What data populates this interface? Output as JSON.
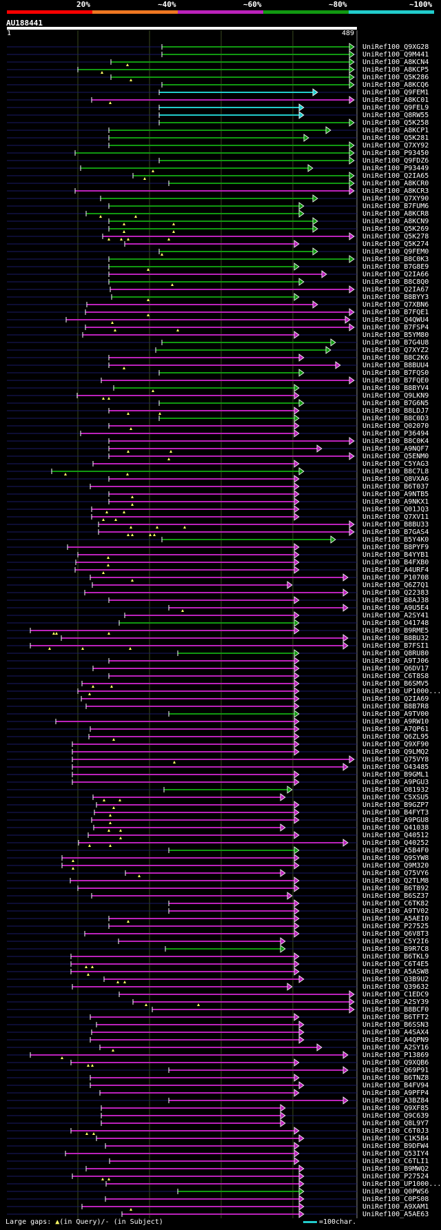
{
  "query": {
    "name": "AU188441",
    "start": "1",
    "end": "489"
  },
  "legend": {
    "percent_labels": [
      "20%",
      "~40%",
      "~60%",
      "~80%",
      "~100%"
    ],
    "colors": [
      "#ff0000",
      "#ee7722",
      "#bb22bb",
      "#119911",
      "#22cccc"
    ]
  },
  "footer": {
    "gaps_label": "Large gaps:",
    "gaps_query": "(in Query)/",
    "gaps_subject": "- (in Subject)",
    "scale_label": "=100char."
  },
  "hits": [
    {
      "id": "UniRef100_Q9XG28",
      "s": 235,
      "e": 514,
      "c": "g",
      "a": []
    },
    {
      "id": "UniRef100_Q9M441",
      "s": 235,
      "e": 514,
      "c": "g",
      "a": []
    },
    {
      "id": "UniRef100_A8KCN4",
      "s": 161,
      "e": 514,
      "c": "g",
      "a": [
        185
      ]
    },
    {
      "id": "UniRef100_A8KCP5",
      "s": 113,
      "e": 514,
      "c": "g",
      "a": [
        148
      ]
    },
    {
      "id": "UniRef100_Q5K286",
      "s": 161,
      "e": 514,
      "c": "g",
      "a": [
        190
      ]
    },
    {
      "id": "UniRef100_A8KCQ6",
      "s": 235,
      "e": 514,
      "c": "g",
      "a": []
    },
    {
      "id": "UniRef100_Q9FEM1",
      "s": 231,
      "e": 461,
      "c": "c",
      "a": []
    },
    {
      "id": "UniRef100_A8KC01",
      "s": 133,
      "e": 514,
      "c": "m",
      "a": [
        160
      ]
    },
    {
      "id": "UniRef100_Q9FEL9",
      "s": 231,
      "e": 441,
      "c": "c",
      "a": []
    },
    {
      "id": "UniRef100_Q8RW55",
      "s": 231,
      "e": 441,
      "c": "c",
      "a": []
    },
    {
      "id": "UniRef100_Q5K258",
      "s": 231,
      "e": 514,
      "c": "g",
      "a": []
    },
    {
      "id": "UniRef100_A8KCP1",
      "s": 158,
      "e": 480,
      "c": "g",
      "a": []
    },
    {
      "id": "UniRef100_Q5K281",
      "s": 158,
      "e": 448,
      "c": "g",
      "a": []
    },
    {
      "id": "UniRef100_Q7XY92",
      "s": 158,
      "e": 514,
      "c": "g",
      "a": []
    },
    {
      "id": "UniRef100_P93450",
      "s": 109,
      "e": 514,
      "c": "g",
      "a": []
    },
    {
      "id": "UniRef100_Q9FDZ6",
      "s": 231,
      "e": 514,
      "c": "g",
      "a": []
    },
    {
      "id": "UniRef100_P93449",
      "s": 117,
      "e": 454,
      "c": "g",
      "a": [
        222
      ]
    },
    {
      "id": "UniRef100_Q2IA65",
      "s": 193,
      "e": 514,
      "c": "g",
      "a": [
        210
      ]
    },
    {
      "id": "UniRef100_A8KCR0",
      "s": 245,
      "e": 514,
      "c": "g",
      "a": []
    },
    {
      "id": "UniRef100_A8KCR3",
      "s": 109,
      "e": 514,
      "c": "m",
      "a": []
    },
    {
      "id": "UniRef100_Q7XY90",
      "s": 146,
      "e": 461,
      "c": "g",
      "a": []
    },
    {
      "id": "UniRef100_B7FUM6",
      "s": 158,
      "e": 441,
      "c": "g",
      "a": []
    },
    {
      "id": "UniRef100_A8KCR8",
      "s": 125,
      "e": 441,
      "c": "g",
      "a": [
        146,
        197
      ]
    },
    {
      "id": "UniRef100_A8KCN9",
      "s": 158,
      "e": 461,
      "c": "g",
      "a": [
        180,
        252
      ]
    },
    {
      "id": "UniRef100_Q5K269",
      "s": 158,
      "e": 461,
      "c": "g",
      "a": [
        180,
        252
      ]
    },
    {
      "id": "UniRef100_Q5K278",
      "s": 149,
      "e": 514,
      "c": "m",
      "a": [
        158,
        176,
        186,
        245
      ]
    },
    {
      "id": "UniRef100_Q5K274",
      "s": 181,
      "e": 434,
      "c": "m",
      "a": []
    },
    {
      "id": "UniRef100_Q9FEM0",
      "s": 231,
      "e": 461,
      "c": "g",
      "a": [
        235
      ]
    },
    {
      "id": "UniRef100_B8C0K3",
      "s": 158,
      "e": 514,
      "c": "g",
      "a": []
    },
    {
      "id": "UniRef100_B7G8E9",
      "s": 158,
      "e": 434,
      "c": "g",
      "a": [
        215
      ]
    },
    {
      "id": "UniRef100_Q2IA66",
      "s": 158,
      "e": 474,
      "c": "m",
      "a": []
    },
    {
      "id": "UniRef100_B8C8Q0",
      "s": 158,
      "e": 441,
      "c": "g",
      "a": [
        250
      ]
    },
    {
      "id": "UniRef100_Q2IA67",
      "s": 160,
      "e": 514,
      "c": "m",
      "a": []
    },
    {
      "id": "UniRef100_B8BYY3",
      "s": 162,
      "e": 434,
      "c": "g",
      "a": [
        215
      ]
    },
    {
      "id": "UniRef100_Q7XBN6",
      "s": 126,
      "e": 461,
      "c": "m",
      "a": []
    },
    {
      "id": "UniRef100_B7FQE1",
      "s": 124,
      "e": 514,
      "c": "m",
      "a": [
        215
      ]
    },
    {
      "id": "UniRef100_Q4QWU4",
      "s": 96,
      "e": 508,
      "c": "m",
      "a": [
        163
      ]
    },
    {
      "id": "UniRef100_B7FSP4",
      "s": 124,
      "e": 514,
      "c": "m",
      "a": [
        167,
        258
      ]
    },
    {
      "id": "UniRef100_B5YM80",
      "s": 120,
      "e": 434,
      "c": "m",
      "a": []
    },
    {
      "id": "UniRef100_B7G4U8",
      "s": 235,
      "e": 487,
      "c": "g",
      "a": []
    },
    {
      "id": "UniRef100_Q7XYZ2",
      "s": 226,
      "e": 480,
      "c": "g",
      "a": []
    },
    {
      "id": "UniRef100_B8C2K6",
      "s": 158,
      "e": 441,
      "c": "m",
      "a": []
    },
    {
      "id": "UniRef100_B8BUU4",
      "s": 158,
      "e": 494,
      "c": "m",
      "a": [
        180
      ]
    },
    {
      "id": "UniRef100_B7FQS0",
      "s": 231,
      "e": 441,
      "c": "g",
      "a": []
    },
    {
      "id": "UniRef100_B7FQE0",
      "s": 147,
      "e": 514,
      "c": "m",
      "a": []
    },
    {
      "id": "UniRef100_B8BYV4",
      "s": 165,
      "e": 434,
      "c": "g",
      "a": [
        222
      ]
    },
    {
      "id": "UniRef100_Q9LKN9",
      "s": 112,
      "e": 434,
      "c": "m",
      "a": [
        150,
        158
      ]
    },
    {
      "id": "UniRef100_B7G6N5",
      "s": 231,
      "e": 441,
      "c": "g",
      "a": []
    },
    {
      "id": "UniRef100_B8LDJ7",
      "s": 158,
      "e": 434,
      "c": "m",
      "a": [
        186,
        232
      ]
    },
    {
      "id": "UniRef100_B8C0D3",
      "s": 231,
      "e": 434,
      "c": "g",
      "a": []
    },
    {
      "id": "UniRef100_Q02070",
      "s": 158,
      "e": 434,
      "c": "m",
      "a": [
        190
      ]
    },
    {
      "id": "UniRef100_P36494",
      "s": 117,
      "e": 434,
      "c": "m",
      "a": []
    },
    {
      "id": "UniRef100_B8C0K4",
      "s": 158,
      "e": 514,
      "c": "m",
      "a": []
    },
    {
      "id": "UniRef100_A9NQF7",
      "s": 158,
      "e": 467,
      "c": "m",
      "a": [
        186,
        248
      ]
    },
    {
      "id": "UniRef100_Q5ENM0",
      "s": 158,
      "e": 514,
      "c": "m",
      "a": [
        245
      ]
    },
    {
      "id": "UniRef100_C5YAG3",
      "s": 135,
      "e": 434,
      "c": "m",
      "a": []
    },
    {
      "id": "UniRef100_B8C7L8",
      "s": 75,
      "e": 441,
      "c": "g",
      "a": [
        95,
        185
      ]
    },
    {
      "id": "UniRef100_Q8VXA6",
      "s": 158,
      "e": 434,
      "c": "m",
      "a": []
    },
    {
      "id": "UniRef100_B6T037",
      "s": 131,
      "e": 434,
      "c": "m",
      "a": []
    },
    {
      "id": "UniRef100_A9NTB5",
      "s": 158,
      "e": 434,
      "c": "m",
      "a": [
        192
      ]
    },
    {
      "id": "UniRef100_A9NKX1",
      "s": 158,
      "e": 434,
      "c": "m",
      "a": [
        192
      ]
    },
    {
      "id": "UniRef100_Q01JQ3",
      "s": 133,
      "e": 434,
      "c": "m",
      "a": [
        155,
        180
      ]
    },
    {
      "id": "UniRef100_Q7XV11",
      "s": 133,
      "e": 434,
      "c": "m",
      "a": [
        150,
        168
      ]
    },
    {
      "id": "UniRef100_B8BU33",
      "s": 143,
      "e": 514,
      "c": "m",
      "a": [
        190,
        228,
        268
      ]
    },
    {
      "id": "UniRef100_B7GAS4",
      "s": 143,
      "e": 514,
      "c": "m",
      "a": [
        186,
        192,
        218,
        224
      ]
    },
    {
      "id": "UniRef100_B5Y4K0",
      "s": 235,
      "e": 487,
      "c": "g",
      "a": []
    },
    {
      "id": "UniRef100_B8PYF9",
      "s": 98,
      "e": 434,
      "c": "m",
      "a": []
    },
    {
      "id": "UniRef100_B4YYB1",
      "s": 113,
      "e": 434,
      "c": "m",
      "a": [
        157
      ]
    },
    {
      "id": "UniRef100_B4FXB0",
      "s": 110,
      "e": 434,
      "c": "m",
      "a": [
        157
      ]
    },
    {
      "id": "UniRef100_A4URF4",
      "s": 109,
      "e": 434,
      "c": "m",
      "a": [
        150
      ]
    },
    {
      "id": "UniRef100_P10708",
      "s": 131,
      "e": 505,
      "c": "m",
      "a": [
        192
      ]
    },
    {
      "id": "UniRef100_Q6Z7Q1",
      "s": 134,
      "e": 424,
      "c": "m",
      "a": []
    },
    {
      "id": "UniRef100_Q22383",
      "s": 123,
      "e": 505,
      "c": "m",
      "a": []
    },
    {
      "id": "UniRef100_B8AJ38",
      "s": 158,
      "e": 434,
      "c": "m",
      "a": []
    },
    {
      "id": "UniRef100_A9U5E4",
      "s": 245,
      "e": 505,
      "c": "m",
      "a": [
        265
      ]
    },
    {
      "id": "UniRef100_A2SY41",
      "s": 181,
      "e": 434,
      "c": "m",
      "a": []
    },
    {
      "id": "UniRef100_O41748",
      "s": 173,
      "e": 434,
      "c": "g",
      "a": []
    },
    {
      "id": "UniRef100_B9RME5",
      "s": 44,
      "e": 434,
      "c": "m",
      "a": [
        78,
        82,
        158
      ]
    },
    {
      "id": "UniRef100_B8BU32",
      "s": 89,
      "e": 505,
      "c": "m",
      "a": []
    },
    {
      "id": "UniRef100_B7FSI1",
      "s": 44,
      "e": 505,
      "c": "m",
      "a": [
        72,
        120,
        189
      ]
    },
    {
      "id": "UniRef100_Q8RU80",
      "s": 258,
      "e": 434,
      "c": "g",
      "a": []
    },
    {
      "id": "UniRef100_A9TJ06",
      "s": 158,
      "e": 434,
      "c": "m",
      "a": []
    },
    {
      "id": "UniRef100_Q6DV17",
      "s": 135,
      "e": 434,
      "c": "m",
      "a": []
    },
    {
      "id": "UniRef100_C6T8S8",
      "s": 158,
      "e": 434,
      "c": "m",
      "a": []
    },
    {
      "id": "UniRef100_B6SMV5",
      "s": 119,
      "e": 434,
      "c": "m",
      "a": [
        135,
        162
      ]
    },
    {
      "id": "UniRef100_UP1000...",
      "s": 113,
      "e": 434,
      "c": "m",
      "a": [
        130
      ]
    },
    {
      "id": "UniRef100_Q2IA69",
      "s": 118,
      "e": 434,
      "c": "m",
      "a": []
    },
    {
      "id": "UniRef100_B8B7R8",
      "s": 125,
      "e": 434,
      "c": "m",
      "a": []
    },
    {
      "id": "UniRef100_A9TV00",
      "s": 245,
      "e": 434,
      "c": "g",
      "a": []
    },
    {
      "id": "UniRef100_A9RW10",
      "s": 81,
      "e": 434,
      "c": "m",
      "a": []
    },
    {
      "id": "UniRef100_A7QP61",
      "s": 131,
      "e": 434,
      "c": "m",
      "a": []
    },
    {
      "id": "UniRef100_Q6ZL95",
      "s": 129,
      "e": 434,
      "c": "m",
      "a": [
        165
      ]
    },
    {
      "id": "UniRef100_Q9XF90",
      "s": 105,
      "e": 434,
      "c": "m",
      "a": []
    },
    {
      "id": "UniRef100_Q9LMQ2",
      "s": 105,
      "e": 434,
      "c": "m",
      "a": []
    },
    {
      "id": "UniRef100_Q75VY8",
      "s": 105,
      "e": 514,
      "c": "m",
      "a": [
        253
      ]
    },
    {
      "id": "UniRef100_O43485",
      "s": 105,
      "e": 505,
      "c": "m",
      "a": []
    },
    {
      "id": "UniRef100_B9GML1",
      "s": 105,
      "e": 434,
      "c": "m",
      "a": []
    },
    {
      "id": "UniRef100_A9PGU3",
      "s": 105,
      "e": 434,
      "c": "m",
      "a": []
    },
    {
      "id": "UniRef100_O81932",
      "s": 238,
      "e": 424,
      "c": "g",
      "a": []
    },
    {
      "id": "UniRef100_C5XSU5",
      "s": 135,
      "e": 414,
      "c": "m",
      "a": [
        151,
        174
      ]
    },
    {
      "id": "UniRef100_B9GZP7",
      "s": 140,
      "e": 434,
      "c": "m",
      "a": [
        165
      ]
    },
    {
      "id": "UniRef100_B4FYT3",
      "s": 137,
      "e": 434,
      "c": "m",
      "a": [
        160
      ]
    },
    {
      "id": "UniRef100_A9PGU8",
      "s": 133,
      "e": 434,
      "c": "m",
      "a": [
        160
      ]
    },
    {
      "id": "UniRef100_Q41038",
      "s": 136,
      "e": 414,
      "c": "m",
      "a": [
        158,
        175
      ]
    },
    {
      "id": "UniRef100_Q40512",
      "s": 128,
      "e": 434,
      "c": "m",
      "a": [
        175
      ]
    },
    {
      "id": "UniRef100_Q40252",
      "s": 114,
      "e": 505,
      "c": "m",
      "a": [
        130,
        160
      ]
    },
    {
      "id": "UniRef100_A5B4F0",
      "s": 245,
      "e": 434,
      "c": "g",
      "a": []
    },
    {
      "id": "UniRef100_Q9SYW8",
      "s": 90,
      "e": 434,
      "c": "m",
      "a": [
        106
      ]
    },
    {
      "id": "UniRef100_Q9M320",
      "s": 90,
      "e": 434,
      "c": "m",
      "a": [
        106
      ]
    },
    {
      "id": "UniRef100_Q75VY6",
      "s": 182,
      "e": 414,
      "c": "m",
      "a": [
        202
      ]
    },
    {
      "id": "UniRef100_Q2TLM8",
      "s": 102,
      "e": 434,
      "c": "m",
      "a": []
    },
    {
      "id": "UniRef100_B6T892",
      "s": 113,
      "e": 434,
      "c": "m",
      "a": []
    },
    {
      "id": "UniRef100_B6SZ37",
      "s": 133,
      "e": 424,
      "c": "m",
      "a": []
    },
    {
      "id": "UniRef100_C6TK82",
      "s": 245,
      "e": 434,
      "c": "m",
      "a": []
    },
    {
      "id": "UniRef100_A9TV02",
      "s": 245,
      "e": 434,
      "c": "m",
      "a": []
    },
    {
      "id": "UniRef100_A5AEI0",
      "s": 158,
      "e": 434,
      "c": "m",
      "a": [
        186
      ]
    },
    {
      "id": "UniRef100_P27525",
      "s": 158,
      "e": 434,
      "c": "m",
      "a": []
    },
    {
      "id": "UniRef100_Q6V8T3",
      "s": 123,
      "e": 434,
      "c": "m",
      "a": []
    },
    {
      "id": "UniRef100_C5Y2I6",
      "s": 172,
      "e": 414,
      "c": "m",
      "a": []
    },
    {
      "id": "UniRef100_B9R7C8",
      "s": 240,
      "e": 414,
      "c": "g",
      "a": []
    },
    {
      "id": "UniRef100_B6TKL9",
      "s": 103,
      "e": 434,
      "c": "m",
      "a": []
    },
    {
      "id": "UniRef100_C6T4E5",
      "s": 103,
      "e": 434,
      "c": "m",
      "a": [
        125,
        134
      ]
    },
    {
      "id": "UniRef100_A5ASW8",
      "s": 103,
      "e": 434,
      "c": "m",
      "a": [
        128
      ]
    },
    {
      "id": "UniRef100_Q3B9U2",
      "s": 151,
      "e": 441,
      "c": "m",
      "a": [
        171,
        181
      ]
    },
    {
      "id": "UniRef100_Q39632",
      "s": 105,
      "e": 424,
      "c": "m",
      "a": []
    },
    {
      "id": "UniRef100_C1EDC9",
      "s": 173,
      "e": 514,
      "c": "m",
      "a": []
    },
    {
      "id": "UniRef100_A2SY39",
      "s": 193,
      "e": 514,
      "c": "m",
      "a": [
        212,
        288
      ]
    },
    {
      "id": "UniRef100_B8BCF0",
      "s": 221,
      "e": 514,
      "c": "m",
      "a": []
    },
    {
      "id": "UniRef100_B6TFT2",
      "s": 131,
      "e": 434,
      "c": "m",
      "a": []
    },
    {
      "id": "UniRef100_B6SSN3",
      "s": 140,
      "e": 441,
      "c": "m",
      "a": []
    },
    {
      "id": "UniRef100_A4SAX4",
      "s": 133,
      "e": 441,
      "c": "m",
      "a": []
    },
    {
      "id": "UniRef100_A4QPN9",
      "s": 131,
      "e": 441,
      "c": "m",
      "a": []
    },
    {
      "id": "UniRef100_A2SY16",
      "s": 145,
      "e": 467,
      "c": "m",
      "a": [
        164
      ]
    },
    {
      "id": "UniRef100_P13869",
      "s": 44,
      "e": 505,
      "c": "m",
      "a": [
        90
      ]
    },
    {
      "id": "UniRef100_Q9XQB6",
      "s": 103,
      "e": 434,
      "c": "m",
      "a": [
        128,
        134
      ]
    },
    {
      "id": "UniRef100_Q69P91",
      "s": 245,
      "e": 505,
      "c": "m",
      "a": []
    },
    {
      "id": "UniRef100_B6TNZ8",
      "s": 131,
      "e": 434,
      "c": "m",
      "a": []
    },
    {
      "id": "UniRef100_B4FV94",
      "s": 131,
      "e": 441,
      "c": "m",
      "a": []
    },
    {
      "id": "UniRef100_A9PFP4",
      "s": 145,
      "e": 434,
      "c": "m",
      "a": []
    },
    {
      "id": "UniRef100_A3BZ84",
      "s": 245,
      "e": 505,
      "c": "m",
      "a": []
    },
    {
      "id": "UniRef100_Q9XF85",
      "s": 147,
      "e": 414,
      "c": "m",
      "a": []
    },
    {
      "id": "UniRef100_Q9C639",
      "s": 147,
      "e": 414,
      "c": "m",
      "a": []
    },
    {
      "id": "UniRef100_Q8L9Y7",
      "s": 147,
      "e": 414,
      "c": "m",
      "a": []
    },
    {
      "id": "UniRef100_C6T0J3",
      "s": 103,
      "e": 434,
      "c": "m",
      "a": [
        126,
        136
      ]
    },
    {
      "id": "UniRef100_C1K5B4",
      "s": 140,
      "e": 441,
      "c": "m",
      "a": []
    },
    {
      "id": "UniRef100_B9DFW4",
      "s": 153,
      "e": 434,
      "c": "m",
      "a": []
    },
    {
      "id": "UniRef100_Q53IY4",
      "s": 95,
      "e": 434,
      "c": "m",
      "a": []
    },
    {
      "id": "UniRef100_C6TLI1",
      "s": 159,
      "e": 434,
      "c": "m",
      "a": []
    },
    {
      "id": "UniRef100_B9MWQ2",
      "s": 125,
      "e": 441,
      "c": "m",
      "a": []
    },
    {
      "id": "UniRef100_P27524",
      "s": 105,
      "e": 441,
      "c": "m",
      "a": [
        149,
        158
      ]
    },
    {
      "id": "UniRef100_UP1000...",
      "s": 154,
      "e": 441,
      "c": "m",
      "a": []
    },
    {
      "id": "UniRef100_Q0PWS6",
      "s": 258,
      "e": 441,
      "c": "g",
      "a": []
    },
    {
      "id": "UniRef100_C0PS08",
      "s": 153,
      "e": 441,
      "c": "m",
      "a": []
    },
    {
      "id": "UniRef100_A9XAM1",
      "s": 119,
      "e": 441,
      "c": "m",
      "a": [
        190
      ]
    },
    {
      "id": "UniRef100_A5AE63",
      "s": 177,
      "e": 441,
      "c": "m",
      "a": []
    }
  ]
}
